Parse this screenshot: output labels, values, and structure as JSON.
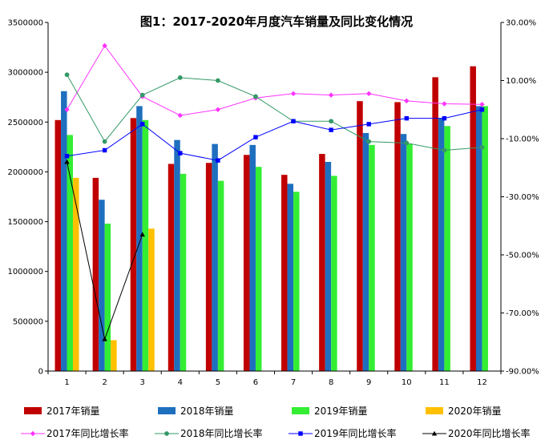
{
  "chart_data": {
    "type": "bar",
    "title": "图1：2017-2020年月度汽车销量及同比变化情况",
    "categories": [
      "1",
      "2",
      "3",
      "4",
      "5",
      "6",
      "7",
      "8",
      "9",
      "10",
      "11",
      "12"
    ],
    "xlabel": "",
    "ylabel": "",
    "ylim": [
      0,
      3500000
    ],
    "y_ticks": [
      "0",
      "500000",
      "1000000",
      "1500000",
      "2000000",
      "2500000",
      "3000000",
      "3500000"
    ],
    "y2lim": [
      -0.9,
      0.3
    ],
    "y2_ticks": [
      "-90.00%",
      "-70.00%",
      "-50.00%",
      "-30.00%",
      "-10.00%",
      "10.00%",
      "30.00%"
    ],
    "grid": false,
    "legend_position": "bottom",
    "bar_series": [
      {
        "name": "2017年销量",
        "color": "#c00000",
        "values": [
          2520000,
          1940000,
          2540000,
          2080000,
          2090000,
          2170000,
          1970000,
          2180000,
          2710000,
          2700000,
          2950000,
          3060000
        ]
      },
      {
        "name": "2018年销量",
        "color": "#1f6fbf",
        "values": [
          2810000,
          1720000,
          2660000,
          2320000,
          2280000,
          2270000,
          1880000,
          2100000,
          2390000,
          2380000,
          2540000,
          2660000
        ]
      },
      {
        "name": "2019年销量",
        "color": "#33ee33",
        "values": [
          2370000,
          1480000,
          2520000,
          1980000,
          1910000,
          2050000,
          1800000,
          1960000,
          2270000,
          2280000,
          2460000,
          2660000
        ]
      },
      {
        "name": "2020年销量",
        "color": "#ffc000",
        "values": [
          1940000,
          310000,
          1430000,
          null,
          null,
          null,
          null,
          null,
          null,
          null,
          null,
          null
        ]
      }
    ],
    "line_series": [
      {
        "name": "2017年同比增长率",
        "color": "#ff33ff",
        "marker": "diamond",
        "values": [
          0.0,
          0.22,
          0.045,
          -0.02,
          -0.0,
          0.04,
          0.055,
          0.05,
          0.055,
          0.03,
          0.02,
          0.018
        ]
      },
      {
        "name": "2018年同比增长率",
        "color": "#339966",
        "marker": "circle",
        "values": [
          0.12,
          -0.11,
          0.05,
          0.11,
          0.1,
          0.045,
          -0.04,
          -0.04,
          -0.11,
          -0.115,
          -0.14,
          -0.13
        ]
      },
      {
        "name": "2019年同比增长率",
        "color": "#0000ff",
        "marker": "square",
        "values": [
          -0.16,
          -0.14,
          -0.05,
          -0.15,
          -0.175,
          -0.095,
          -0.04,
          -0.07,
          -0.05,
          -0.03,
          -0.03,
          0.0
        ]
      },
      {
        "name": "2020年同比增长率",
        "color": "#000000",
        "marker": "triangle",
        "values": [
          -0.18,
          -0.79,
          -0.43,
          null,
          null,
          null,
          null,
          null,
          null,
          null,
          null,
          null
        ]
      }
    ]
  }
}
